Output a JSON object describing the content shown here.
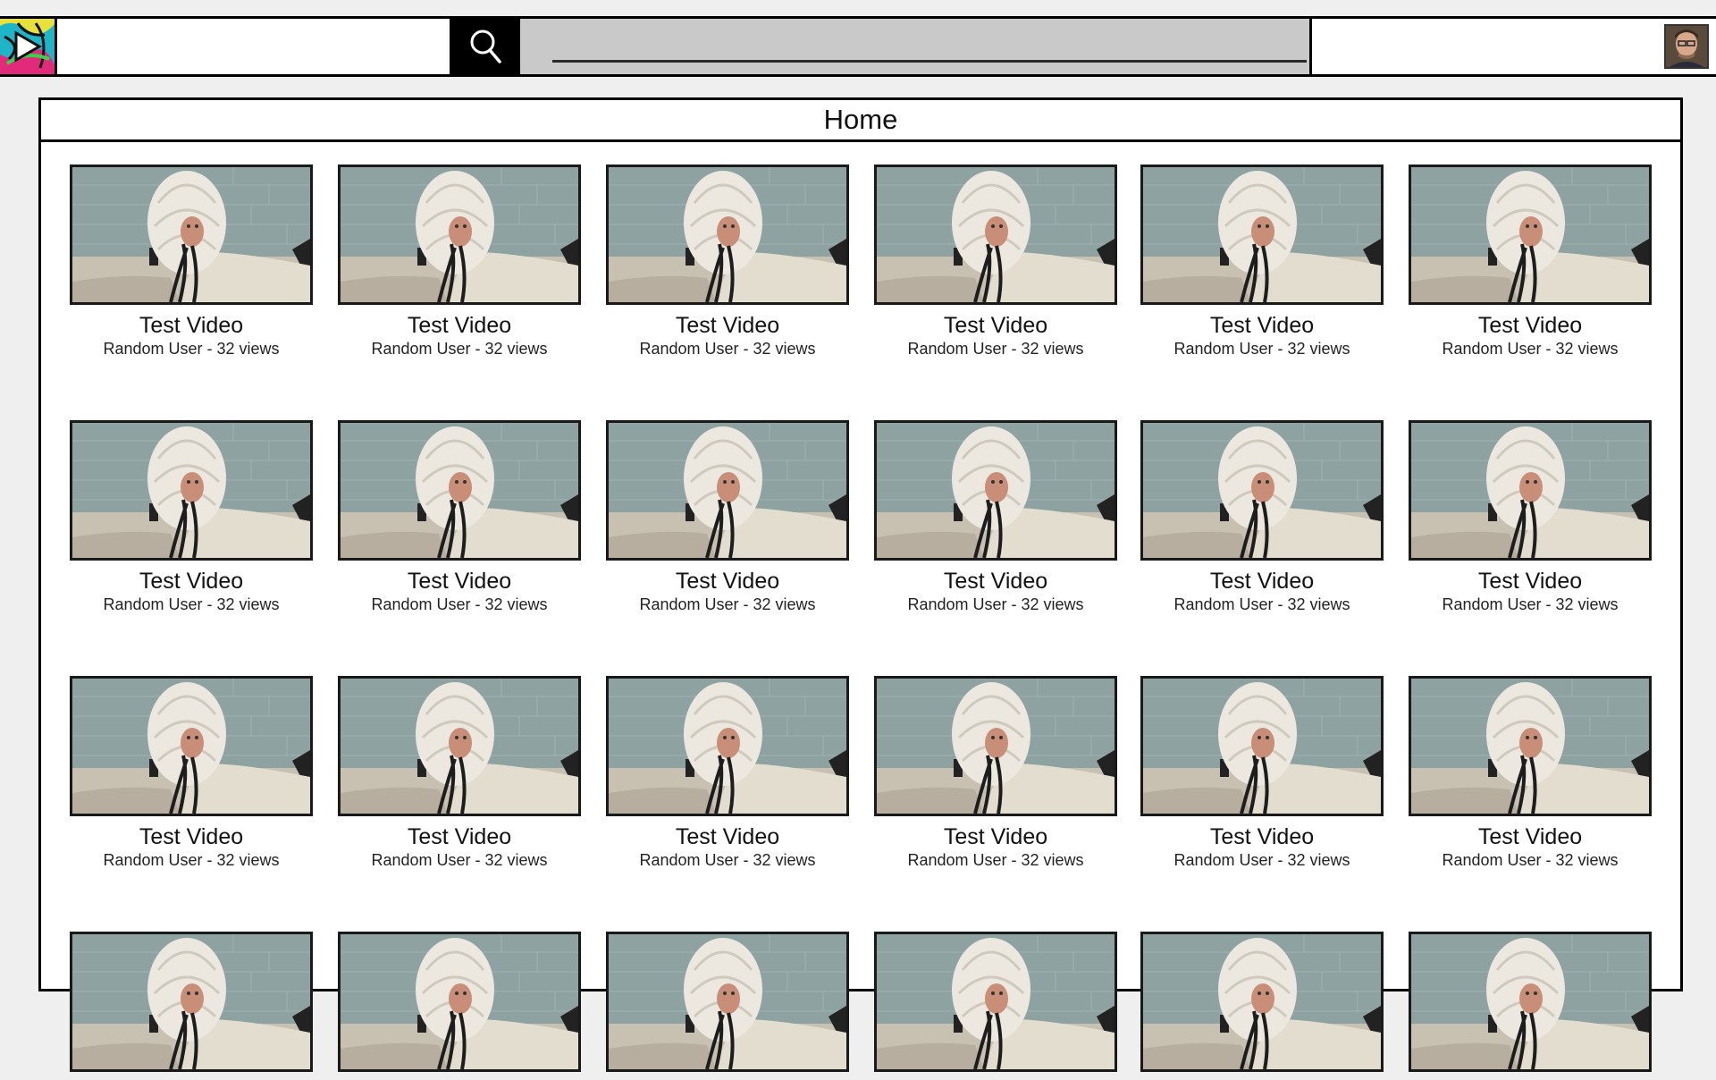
{
  "header": {
    "logo_icon": "app-logo-play-icon",
    "search": {
      "value": "",
      "placeholder": ""
    },
    "search_icon": "search-icon",
    "avatar_icon": "user-avatar"
  },
  "main": {
    "title": "Home",
    "videos": [
      {
        "title": "Test Video",
        "meta": "Random User - 32 views"
      },
      {
        "title": "Test Video",
        "meta": "Random User - 32 views"
      },
      {
        "title": "Test Video",
        "meta": "Random User - 32 views"
      },
      {
        "title": "Test Video",
        "meta": "Random User - 32 views"
      },
      {
        "title": "Test Video",
        "meta": "Random User - 32 views"
      },
      {
        "title": "Test Video",
        "meta": "Random User - 32 views"
      },
      {
        "title": "Test Video",
        "meta": "Random User - 32 views"
      },
      {
        "title": "Test Video",
        "meta": "Random User - 32 views"
      },
      {
        "title": "Test Video",
        "meta": "Random User - 32 views"
      },
      {
        "title": "Test Video",
        "meta": "Random User - 32 views"
      },
      {
        "title": "Test Video",
        "meta": "Random User - 32 views"
      },
      {
        "title": "Test Video",
        "meta": "Random User - 32 views"
      },
      {
        "title": "Test Video",
        "meta": "Random User - 32 views"
      },
      {
        "title": "Test Video",
        "meta": "Random User - 32 views"
      },
      {
        "title": "Test Video",
        "meta": "Random User - 32 views"
      },
      {
        "title": "Test Video",
        "meta": "Random User - 32 views"
      },
      {
        "title": "Test Video",
        "meta": "Random User - 32 views"
      },
      {
        "title": "Test Video",
        "meta": "Random User - 32 views"
      },
      {
        "title": "",
        "meta": ""
      },
      {
        "title": "",
        "meta": ""
      },
      {
        "title": "",
        "meta": ""
      },
      {
        "title": "",
        "meta": ""
      },
      {
        "title": "",
        "meta": ""
      },
      {
        "title": "",
        "meta": ""
      }
    ]
  },
  "colors": {
    "background": "#efefef",
    "progress_bar": "#c9c9c9",
    "border": "#000000"
  }
}
